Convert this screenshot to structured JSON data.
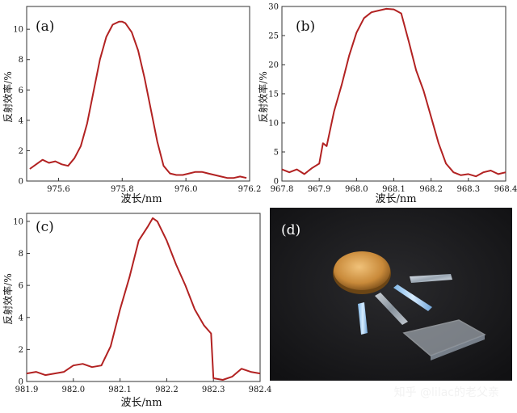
{
  "chart_data": [
    {
      "type": "line",
      "panel_label": "(a)",
      "xlabel": "波长/nm",
      "ylabel": "反射效率/%",
      "xlim": [
        975.5,
        976.2
      ],
      "ylim": [
        0,
        11.5
      ],
      "xticks": [
        "975.6",
        "975.8",
        "976.0",
        "976.2"
      ],
      "yticks": [
        "0",
        "2",
        "4",
        "6",
        "8",
        "10"
      ],
      "series": [
        {
          "x": [
            975.51,
            975.53,
            975.55,
            975.57,
            975.59,
            975.61,
            975.63,
            975.65,
            975.67,
            975.69,
            975.71,
            975.73,
            975.75,
            975.77,
            975.79,
            975.8,
            975.81,
            975.83,
            975.85,
            975.87,
            975.89,
            975.91,
            975.93,
            975.95,
            975.97,
            975.99,
            976.01,
            976.03,
            976.05,
            976.07,
            976.09,
            976.11,
            976.13,
            976.15,
            976.17,
            976.19
          ],
          "y": [
            0.8,
            1.1,
            1.4,
            1.2,
            1.3,
            1.1,
            1.0,
            1.5,
            2.3,
            3.8,
            5.9,
            8.0,
            9.5,
            10.3,
            10.5,
            10.5,
            10.4,
            9.8,
            8.6,
            6.8,
            4.7,
            2.6,
            1.0,
            0.5,
            0.4,
            0.4,
            0.5,
            0.6,
            0.6,
            0.5,
            0.4,
            0.3,
            0.2,
            0.2,
            0.3,
            0.2
          ]
        }
      ]
    },
    {
      "type": "line",
      "panel_label": "(b)",
      "xlabel": "波长/nm",
      "ylabel": "反射效率/%",
      "xlim": [
        967.8,
        968.4
      ],
      "ylim": [
        0,
        30
      ],
      "xticks": [
        "967.8",
        "967.9",
        "968.0",
        "968.1",
        "968.2",
        "968.3",
        "968.4"
      ],
      "yticks": [
        "0",
        "5",
        "10",
        "15",
        "20",
        "25",
        "30"
      ],
      "series": [
        {
          "x": [
            967.8,
            967.82,
            967.84,
            967.86,
            967.88,
            967.9,
            967.91,
            967.92,
            967.94,
            967.96,
            967.98,
            968.0,
            968.02,
            968.04,
            968.06,
            968.08,
            968.1,
            968.12,
            968.14,
            968.16,
            968.18,
            968.2,
            968.22,
            968.24,
            968.26,
            968.28,
            968.3,
            968.32,
            968.34,
            968.36,
            968.38,
            968.4
          ],
          "y": [
            2.0,
            1.5,
            2.0,
            1.2,
            2.2,
            3.0,
            6.5,
            6.0,
            12.0,
            16.5,
            21.5,
            25.5,
            28.0,
            29.0,
            29.3,
            29.6,
            29.5,
            28.8,
            24.0,
            19.0,
            15.5,
            11.0,
            6.5,
            3.0,
            1.5,
            1.0,
            1.2,
            0.8,
            1.5,
            1.8,
            1.2,
            1.5
          ]
        }
      ]
    },
    {
      "type": "line",
      "panel_label": "(c)",
      "xlabel": "波长/nm",
      "ylabel": "反射效率/%",
      "xlim": [
        981.9,
        982.4
      ],
      "ylim": [
        0,
        10.5
      ],
      "xticks": [
        "981.9",
        "982.0",
        "982.1",
        "982.2",
        "982.3",
        "982.4"
      ],
      "yticks": [
        "0",
        "2",
        "4",
        "6",
        "8",
        "10"
      ],
      "series": [
        {
          "x": [
            981.9,
            981.92,
            981.94,
            981.96,
            981.98,
            982.0,
            982.02,
            982.04,
            982.06,
            982.08,
            982.1,
            982.12,
            982.14,
            982.16,
            982.17,
            982.18,
            982.2,
            982.22,
            982.24,
            982.26,
            982.28,
            982.295,
            982.3,
            982.32,
            982.34,
            982.36,
            982.38,
            982.4
          ],
          "y": [
            0.5,
            0.6,
            0.4,
            0.5,
            0.6,
            1.0,
            1.1,
            0.9,
            1.0,
            2.2,
            4.5,
            6.5,
            8.8,
            9.7,
            10.2,
            10.0,
            8.8,
            7.3,
            6.0,
            4.5,
            3.5,
            3.0,
            0.2,
            0.1,
            0.3,
            0.8,
            0.6,
            0.5
          ]
        }
      ]
    }
  ],
  "photo": {
    "panel_label": "(d)",
    "watermark": "知乎 @lilac的老父亲"
  },
  "colors": {
    "curve": "#b22222",
    "photo_bg": "#1c1c1e",
    "coin": "#c98a3a"
  }
}
